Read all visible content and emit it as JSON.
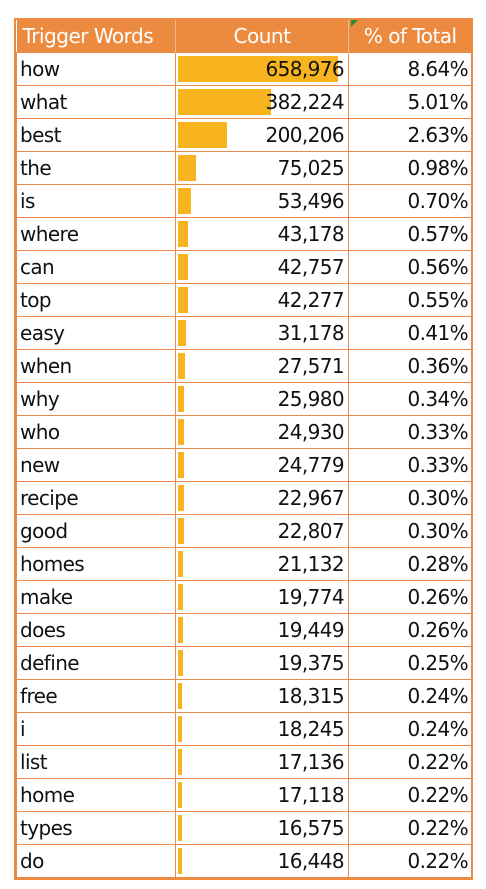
{
  "headers": {
    "word": "Trigger Words",
    "count": "Count",
    "pct": "% of Total"
  },
  "colors": {
    "header": "#ec8a3f",
    "bar": "#f7b41f",
    "border": "#e98a48"
  },
  "max_count": 658976,
  "rows": [
    {
      "word": "how",
      "count": "658,976",
      "value": 658976,
      "pct": "8.64%"
    },
    {
      "word": "what",
      "count": "382,224",
      "value": 382224,
      "pct": "5.01%"
    },
    {
      "word": "best",
      "count": "200,206",
      "value": 200206,
      "pct": "2.63%"
    },
    {
      "word": "the",
      "count": "75,025",
      "value": 75025,
      "pct": "0.98%"
    },
    {
      "word": "is",
      "count": "53,496",
      "value": 53496,
      "pct": "0.70%"
    },
    {
      "word": "where",
      "count": "43,178",
      "value": 43178,
      "pct": "0.57%"
    },
    {
      "word": "can",
      "count": "42,757",
      "value": 42757,
      "pct": "0.56%"
    },
    {
      "word": "top",
      "count": "42,277",
      "value": 42277,
      "pct": "0.55%"
    },
    {
      "word": "easy",
      "count": "31,178",
      "value": 31178,
      "pct": "0.41%"
    },
    {
      "word": "when",
      "count": "27,571",
      "value": 27571,
      "pct": "0.36%"
    },
    {
      "word": "why",
      "count": "25,980",
      "value": 25980,
      "pct": "0.34%"
    },
    {
      "word": "who",
      "count": "24,930",
      "value": 24930,
      "pct": "0.33%"
    },
    {
      "word": "new",
      "count": "24,779",
      "value": 24779,
      "pct": "0.33%"
    },
    {
      "word": "recipe",
      "count": "22,967",
      "value": 22967,
      "pct": "0.30%"
    },
    {
      "word": "good",
      "count": "22,807",
      "value": 22807,
      "pct": "0.30%"
    },
    {
      "word": "homes",
      "count": "21,132",
      "value": 21132,
      "pct": "0.28%"
    },
    {
      "word": "make",
      "count": "19,774",
      "value": 19774,
      "pct": "0.26%"
    },
    {
      "word": "does",
      "count": "19,449",
      "value": 19449,
      "pct": "0.26%"
    },
    {
      "word": "define",
      "count": "19,375",
      "value": 19375,
      "pct": "0.25%"
    },
    {
      "word": "free",
      "count": "18,315",
      "value": 18315,
      "pct": "0.24%"
    },
    {
      "word": "i",
      "count": "18,245",
      "value": 18245,
      "pct": "0.24%"
    },
    {
      "word": "list",
      "count": "17,136",
      "value": 17136,
      "pct": "0.22%"
    },
    {
      "word": "home",
      "count": "17,118",
      "value": 17118,
      "pct": "0.22%"
    },
    {
      "word": "types",
      "count": "16,575",
      "value": 16575,
      "pct": "0.22%"
    },
    {
      "word": "do",
      "count": "16,448",
      "value": 16448,
      "pct": "0.22%"
    }
  ]
}
